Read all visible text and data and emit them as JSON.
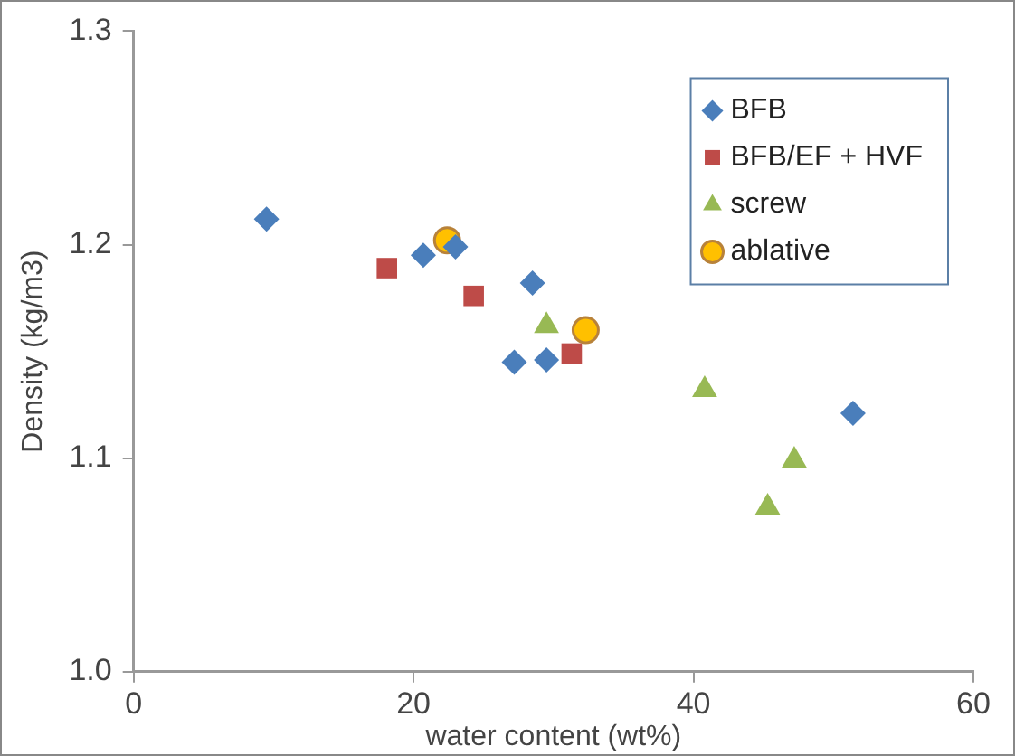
{
  "chart_data": {
    "type": "scatter",
    "xlabel": "water content (wt%)",
    "ylabel": "Density (kg/m3)",
    "xlim": [
      0,
      60
    ],
    "xticks": [
      0,
      20,
      40,
      60
    ],
    "ylim": [
      1.0,
      1.3
    ],
    "yticks": [
      {
        "value": 1.0,
        "label": "1.0"
      },
      1.1,
      1.2,
      1.3
    ],
    "grid": false,
    "legend": "top right",
    "series": [
      {
        "name": "BFB",
        "color": "#4a7ebb",
        "marker": "diamond",
        "x": [
          9.5,
          20.7,
          23.0,
          28.5,
          27.2,
          29.5,
          51.4
        ],
        "values": [
          1.212,
          1.195,
          1.199,
          1.182,
          1.145,
          1.146,
          1.121
        ]
      },
      {
        "name": "BFB/EF + HVF",
        "color": "#be4b48",
        "marker": "square",
        "x": [
          18.1,
          24.3,
          31.3
        ],
        "values": [
          1.189,
          1.176,
          1.149
        ]
      },
      {
        "name": "screw",
        "color": "#98b954",
        "marker": "triangle",
        "x": [
          29.5,
          40.8,
          47.2,
          45.3
        ],
        "values": [
          1.162,
          1.132,
          1.099,
          1.077
        ]
      },
      {
        "name": "ablative",
        "color": "#ffc000",
        "marker": "circle",
        "x": [
          22.4,
          32.3
        ],
        "values": [
          1.202,
          1.16
        ]
      }
    ]
  }
}
